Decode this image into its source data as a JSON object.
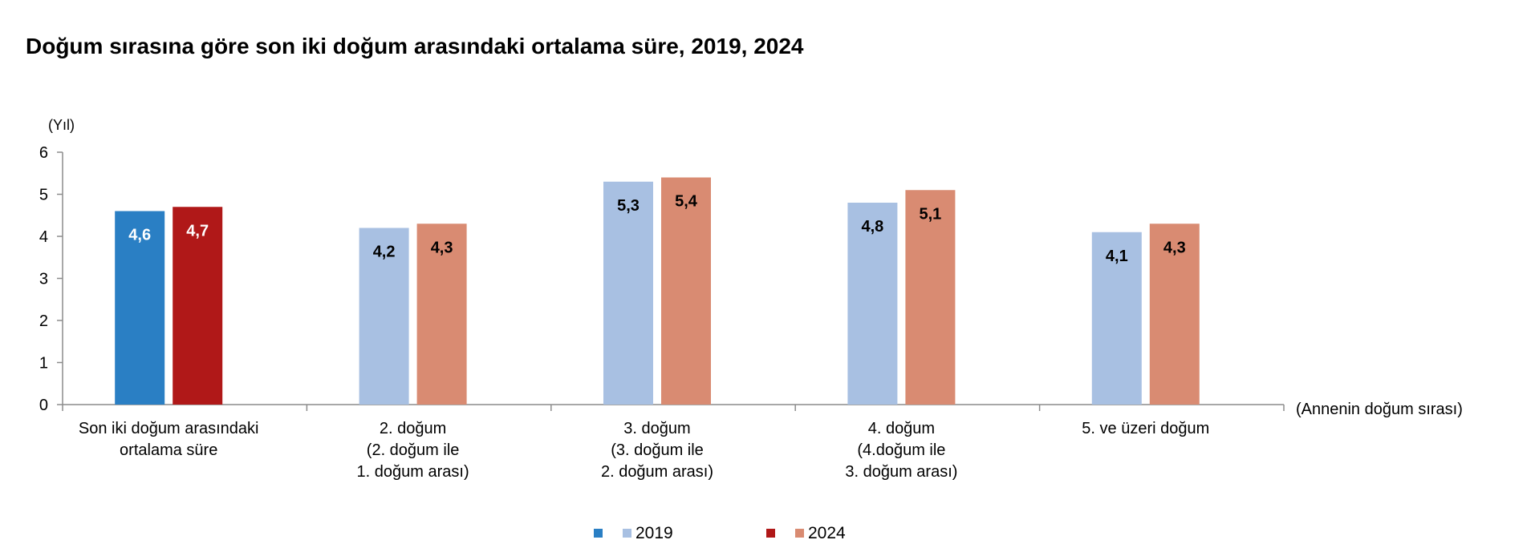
{
  "title": "Doğum sırasına göre son iki doğum arasındaki ortalama süre, 2019, 2024",
  "chart_data": {
    "type": "bar",
    "title": "Doğum sırasına göre son iki doğum arasındaki ortalama süre, 2019, 2024",
    "ylabel": "(Yıl)",
    "xlabel": "(Annenin doğum sırası)",
    "ylim": [
      0,
      6
    ],
    "yticks": [
      "0",
      "1",
      "2",
      "3",
      "4",
      "5",
      "6"
    ],
    "grid": false,
    "legend_position": "bottom",
    "categories": [
      [
        "Son iki doğum arasındaki",
        "ortalama süre"
      ],
      [
        "2. doğum",
        "(2. doğum ile",
        "1. doğum arası)"
      ],
      [
        "3. doğum",
        "(3. doğum ile",
        "2. doğum arası)"
      ],
      [
        "4. doğum",
        "(4.doğum ile",
        "3. doğum arası)"
      ],
      [
        "5. ve üzeri doğum"
      ]
    ],
    "series": [
      {
        "name": "2019",
        "values": [
          4.6,
          4.2,
          5.3,
          4.8,
          4.1
        ],
        "labels": [
          "4,6",
          "4,2",
          "5,3",
          "4,8",
          "4,1"
        ],
        "colors": [
          "#2a7fc4",
          "#a8c0e2",
          "#a8c0e2",
          "#a8c0e2",
          "#a8c0e2"
        ],
        "label_colors": [
          "#ffffff",
          "#000000",
          "#000000",
          "#000000",
          "#000000"
        ]
      },
      {
        "name": "2024",
        "values": [
          4.7,
          4.3,
          5.4,
          5.1,
          4.3
        ],
        "labels": [
          "4,7",
          "4,3",
          "5,4",
          "5,1",
          "4,3"
        ],
        "colors": [
          "#b01818",
          "#d98b72",
          "#d98b72",
          "#d98b72",
          "#d98b72"
        ],
        "label_colors": [
          "#ffffff",
          "#000000",
          "#000000",
          "#000000",
          "#000000"
        ]
      }
    ],
    "legend": [
      {
        "name": "2019",
        "swatches": [
          "#2a7fc4",
          "#a8c0e2"
        ]
      },
      {
        "name": "2024",
        "swatches": [
          "#b01818",
          "#d98b72"
        ]
      }
    ]
  }
}
